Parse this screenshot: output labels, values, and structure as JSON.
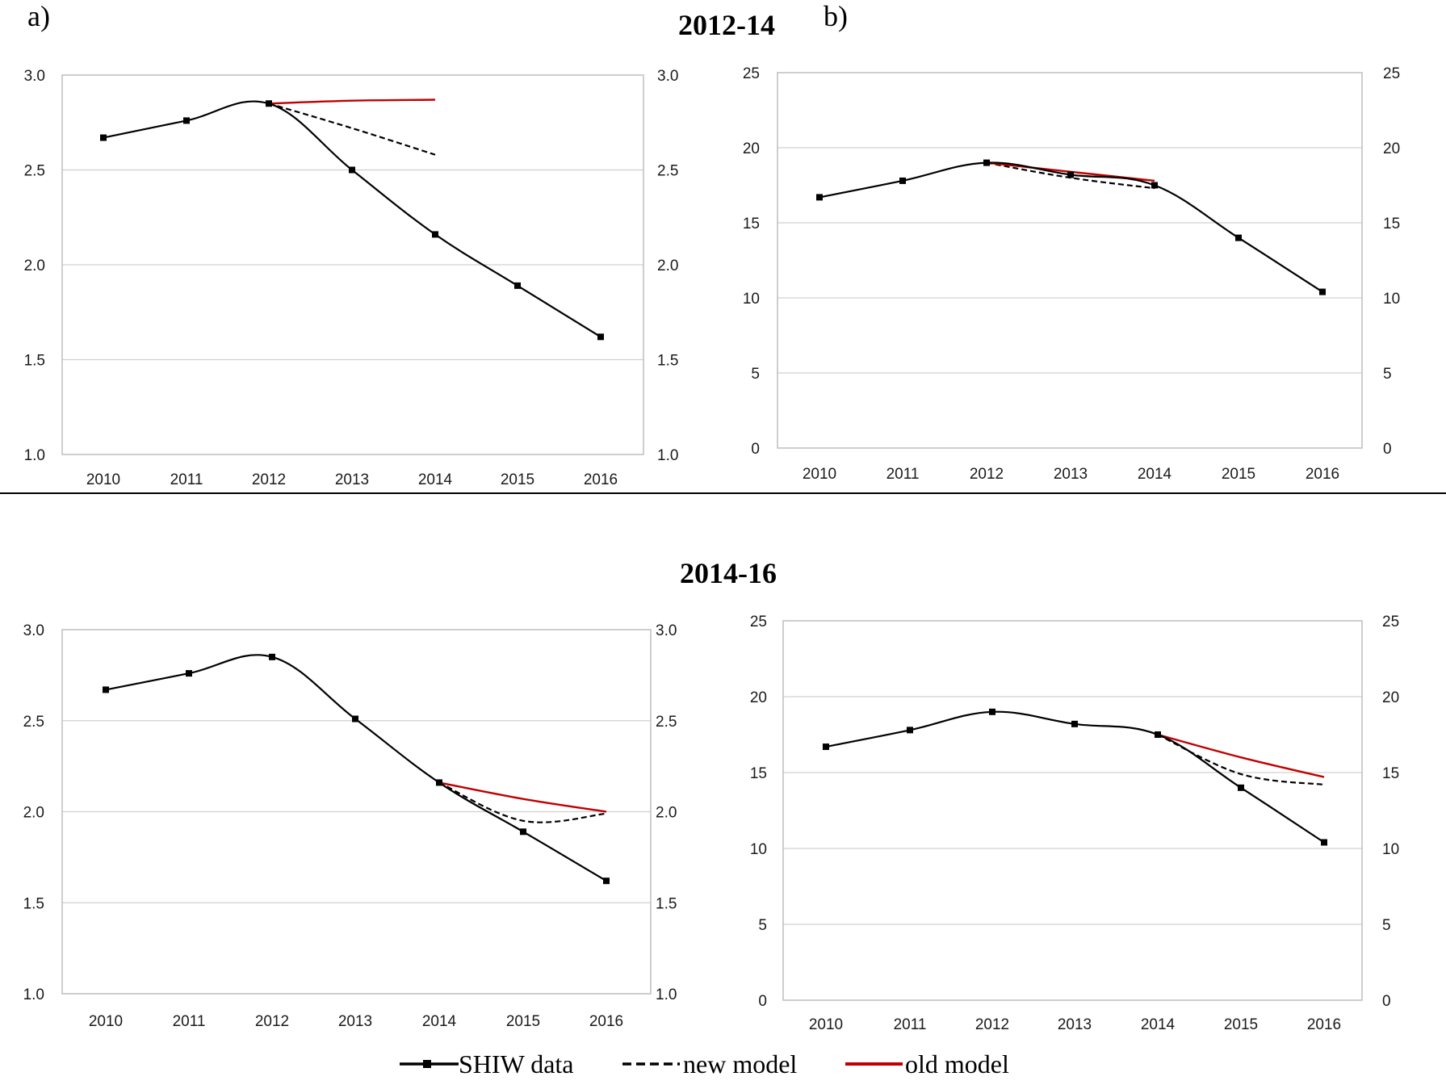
{
  "headings": {
    "top": "2012-14",
    "bottom": "2014-16"
  },
  "panel_labels": {
    "a": "a)",
    "b": "b)"
  },
  "legend": [
    {
      "key": "shiw",
      "label": "SHIW data"
    },
    {
      "key": "new",
      "label": "new model"
    },
    {
      "key": "old",
      "label": "old model"
    }
  ],
  "colors": {
    "shiw": "#000000",
    "new": "#000000",
    "old": "#c00000",
    "grid": "#d0d0d0"
  },
  "chart_data": [
    {
      "type": "line",
      "section": "2012-14",
      "panel": "a",
      "categories": [
        "2010",
        "2011",
        "2012",
        "2013",
        "2014",
        "2015",
        "2016"
      ],
      "ylim": [
        1.0,
        3.0
      ],
      "yticks": [
        "1.0",
        "1.5",
        "2.0",
        "2.5",
        "3.0"
      ],
      "y_axes": "left-and-right",
      "grid": true,
      "series": [
        {
          "key": "shiw",
          "name": "SHIW data",
          "x": [
            "2010",
            "2011",
            "2012",
            "2013",
            "2014",
            "2015",
            "2016"
          ],
          "values": [
            2.67,
            2.76,
            2.85,
            2.5,
            2.16,
            1.89,
            1.62
          ]
        },
        {
          "key": "new",
          "name": "new model",
          "x": [
            "2012",
            "2013",
            "2014"
          ],
          "values": [
            2.85,
            2.72,
            2.58
          ]
        },
        {
          "key": "old",
          "name": "old model",
          "x": [
            "2012",
            "2013",
            "2014"
          ],
          "values": [
            2.85,
            2.865,
            2.87
          ]
        }
      ]
    },
    {
      "type": "line",
      "section": "2012-14",
      "panel": "b",
      "categories": [
        "2010",
        "2011",
        "2012",
        "2013",
        "2014",
        "2015",
        "2016"
      ],
      "ylim": [
        0,
        25
      ],
      "yticks": [
        "0",
        "5",
        "10",
        "15",
        "20",
        "25"
      ],
      "y_axes": "left-and-right",
      "grid": true,
      "series": [
        {
          "key": "shiw",
          "name": "SHIW data",
          "x": [
            "2010",
            "2011",
            "2012",
            "2013",
            "2014",
            "2015",
            "2016"
          ],
          "values": [
            16.7,
            17.8,
            19.0,
            18.2,
            17.5,
            14.0,
            10.4
          ]
        },
        {
          "key": "new",
          "name": "new model",
          "x": [
            "2012",
            "2013",
            "2014"
          ],
          "values": [
            19.0,
            18.0,
            17.3
          ]
        },
        {
          "key": "old",
          "name": "old model",
          "x": [
            "2012",
            "2013",
            "2014"
          ],
          "values": [
            19.0,
            18.4,
            17.8
          ]
        }
      ]
    },
    {
      "type": "line",
      "section": "2014-16",
      "panel": "a",
      "categories": [
        "2010",
        "2011",
        "2012",
        "2013",
        "2014",
        "2015",
        "2016"
      ],
      "ylim": [
        1.0,
        3.0
      ],
      "yticks": [
        "1.0",
        "1.5",
        "2.0",
        "2.5",
        "3.0"
      ],
      "y_axes": "left-and-right",
      "grid": true,
      "series": [
        {
          "key": "shiw",
          "name": "SHIW data",
          "x": [
            "2010",
            "2011",
            "2012",
            "2013",
            "2014",
            "2015",
            "2016"
          ],
          "values": [
            2.67,
            2.76,
            2.85,
            2.51,
            2.16,
            1.89,
            1.62
          ]
        },
        {
          "key": "new",
          "name": "new model",
          "x": [
            "2014",
            "2015",
            "2016"
          ],
          "values": [
            2.16,
            1.95,
            1.99
          ]
        },
        {
          "key": "old",
          "name": "old model",
          "x": [
            "2014",
            "2015",
            "2016"
          ],
          "values": [
            2.16,
            2.07,
            2.0
          ]
        }
      ]
    },
    {
      "type": "line",
      "section": "2014-16",
      "panel": "b",
      "categories": [
        "2010",
        "2011",
        "2012",
        "2013",
        "2014",
        "2015",
        "2016"
      ],
      "ylim": [
        0,
        25
      ],
      "yticks": [
        "0",
        "5",
        "10",
        "15",
        "20",
        "25"
      ],
      "y_axes": "left-and-right",
      "grid": true,
      "series": [
        {
          "key": "shiw",
          "name": "SHIW data",
          "x": [
            "2010",
            "2011",
            "2012",
            "2013",
            "2014",
            "2015",
            "2016"
          ],
          "values": [
            16.7,
            17.8,
            19.0,
            18.2,
            17.5,
            14.0,
            10.4
          ]
        },
        {
          "key": "new",
          "name": "new model",
          "x": [
            "2014",
            "2015",
            "2016"
          ],
          "values": [
            17.5,
            14.9,
            14.2
          ]
        },
        {
          "key": "old",
          "name": "old model",
          "x": [
            "2014",
            "2015",
            "2016"
          ],
          "values": [
            17.5,
            16.0,
            14.7
          ]
        }
      ]
    }
  ]
}
